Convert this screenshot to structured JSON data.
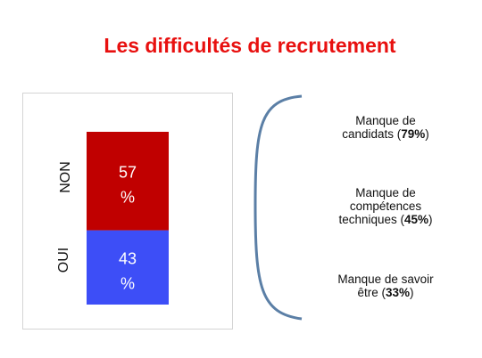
{
  "title": "Les difficultés de recrutement",
  "chart_data": {
    "type": "bar",
    "stacked": true,
    "orientation": "vertical",
    "categories": [
      "OUI",
      "NON"
    ],
    "series": [
      {
        "label": "OUI",
        "value": 43,
        "value_line1": "43",
        "value_line2": "%",
        "color": "#3d4ef7"
      },
      {
        "label": "NON",
        "value": 57,
        "value_line1": "57",
        "value_line2": "%",
        "color": "#c00000"
      }
    ],
    "ylim": [
      0,
      100
    ]
  },
  "reasons": [
    {
      "line1": "Manque de",
      "line2_text": "candidats (",
      "pct": "79%",
      "tail": ")"
    },
    {
      "line1": "Manque de",
      "line2_text": "compétences",
      "line3_text": "techniques (",
      "pct": "45%",
      "tail": ")"
    },
    {
      "line1": "Manque de savoir",
      "line2_text": "être (",
      "pct": "33%",
      "tail": ")"
    }
  ],
  "colors": {
    "title": "#e8100f",
    "bracket": "#5b7fa6"
  }
}
